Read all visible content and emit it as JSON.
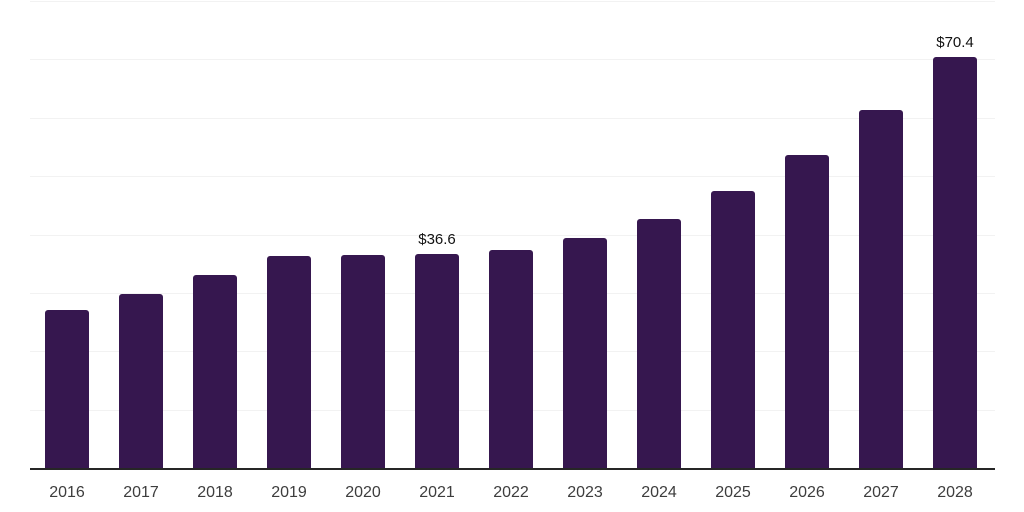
{
  "chart_data": {
    "type": "bar",
    "title": "",
    "xlabel": "",
    "ylabel": "",
    "categories": [
      "2016",
      "2017",
      "2018",
      "2019",
      "2020",
      "2021",
      "2022",
      "2023",
      "2024",
      "2025",
      "2026",
      "2027",
      "2028"
    ],
    "values": [
      27.1,
      29.8,
      33.0,
      36.4,
      36.5,
      36.6,
      37.3,
      39.4,
      42.6,
      47.4,
      53.7,
      61.3,
      70.4
    ],
    "labels": [
      "",
      "",
      "",
      "",
      "",
      "$36.6",
      "",
      "",
      "",
      "",
      "",
      "",
      "$70.4"
    ],
    "labeled_points": [
      {
        "category": "2021",
        "label": "$36.6"
      },
      {
        "category": "2028",
        "label": "$70.4"
      }
    ],
    "ylim": [
      0,
      80
    ],
    "gridline_interval": 10,
    "grid": "horizontal-only",
    "legend": "none",
    "y_axis_tick_labels": "none",
    "colors": {
      "bar": "#36174f",
      "axis_line": "#262626",
      "gridline": "#f2f2f2",
      "tick_label": "#3d3d3d",
      "data_label": "#111111",
      "background": "#ffffff"
    }
  }
}
